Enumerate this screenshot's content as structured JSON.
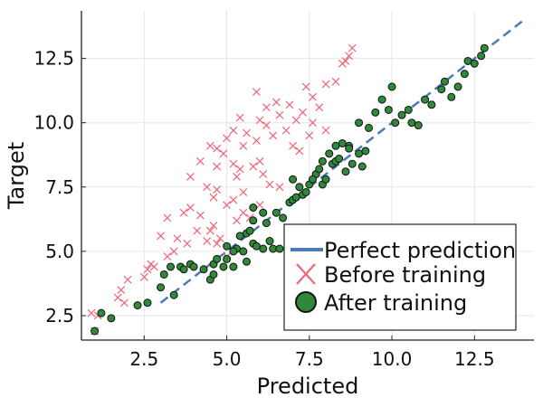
{
  "chart_data": {
    "type": "scatter",
    "xlabel": "Predicted",
    "ylabel": "Target",
    "xlim": [
      0.6,
      14.3
    ],
    "ylim": [
      1.55,
      14.35
    ],
    "xticks": [
      2.5,
      5.0,
      7.5,
      10.0,
      12.5
    ],
    "xtick_labels": [
      "2.5",
      "5.0",
      "7.5",
      "10.0",
      "12.5"
    ],
    "yticks": [
      2.5,
      5.0,
      7.5,
      10.0,
      12.5
    ],
    "ytick_labels": [
      "2.5",
      "5.0",
      "7.5",
      "10.0",
      "12.5"
    ],
    "grid": true,
    "legend_position": "bottom-right",
    "series": [
      {
        "name": "Perfect prediction",
        "kind": "line",
        "style": "dashed",
        "color": "#4c7bb7",
        "points": [
          [
            3.0,
            3.0
          ],
          [
            14.0,
            14.0
          ]
        ]
      },
      {
        "name": "Before training",
        "kind": "scatter",
        "marker": "x",
        "color": "#ee6677",
        "points": [
          [
            1.0,
            1.9
          ],
          [
            0.9,
            2.6
          ],
          [
            1.1,
            2.5
          ],
          [
            1.9,
            3.0
          ],
          [
            1.8,
            3.5
          ],
          [
            2.0,
            3.9
          ],
          [
            1.7,
            3.2
          ],
          [
            2.5,
            4.0
          ],
          [
            2.7,
            4.5
          ],
          [
            2.6,
            4.3
          ],
          [
            2.8,
            4.4
          ],
          [
            3.2,
            4.8
          ],
          [
            3.0,
            5.6
          ],
          [
            3.4,
            5.0
          ],
          [
            3.2,
            6.3
          ],
          [
            3.5,
            5.5
          ],
          [
            3.8,
            5.3
          ],
          [
            3.7,
            6.5
          ],
          [
            3.9,
            6.7
          ],
          [
            4.2,
            6.4
          ],
          [
            4.1,
            5.8
          ],
          [
            4.4,
            5.4
          ],
          [
            4.5,
            5.8
          ],
          [
            4.6,
            6.0
          ],
          [
            4.7,
            5.3
          ],
          [
            4.8,
            5.5
          ],
          [
            5.0,
            4.8
          ],
          [
            5.3,
            6.2
          ],
          [
            4.6,
            7.1
          ],
          [
            4.7,
            7.4
          ],
          [
            5.0,
            6.8
          ],
          [
            5.2,
            7.0
          ],
          [
            5.5,
            6.5
          ],
          [
            5.5,
            7.3
          ],
          [
            5.7,
            6.3
          ],
          [
            6.0,
            6.8
          ],
          [
            3.9,
            7.9
          ],
          [
            4.4,
            7.5
          ],
          [
            4.2,
            8.5
          ],
          [
            4.7,
            8.3
          ],
          [
            4.9,
            8.8
          ],
          [
            5.2,
            8.4
          ],
          [
            5.3,
            7.9
          ],
          [
            5.4,
            8.2
          ],
          [
            5.5,
            9.1
          ],
          [
            5.8,
            8.3
          ],
          [
            6.0,
            8.5
          ],
          [
            6.1,
            8.0
          ],
          [
            6.3,
            7.6
          ],
          [
            6.6,
            7.5
          ],
          [
            4.5,
            9.1
          ],
          [
            4.7,
            9.0
          ],
          [
            5.0,
            9.4
          ],
          [
            5.2,
            9.7
          ],
          [
            5.4,
            10.2
          ],
          [
            5.6,
            9.6
          ],
          [
            5.9,
            9.3
          ],
          [
            6.0,
            10.1
          ],
          [
            6.2,
            9.9
          ],
          [
            6.4,
            9.5
          ],
          [
            6.6,
            10.3
          ],
          [
            6.8,
            9.7
          ],
          [
            7.0,
            9.1
          ],
          [
            7.2,
            8.9
          ],
          [
            7.1,
            10.1
          ],
          [
            7.3,
            10.4
          ],
          [
            7.5,
            9.5
          ],
          [
            7.6,
            10.0
          ],
          [
            7.8,
            10.6
          ],
          [
            8.0,
            9.7
          ],
          [
            6.2,
            10.6
          ],
          [
            6.5,
            10.8
          ],
          [
            6.9,
            10.7
          ],
          [
            5.9,
            11.2
          ],
          [
            7.4,
            11.4
          ],
          [
            7.6,
            11.0
          ],
          [
            8.0,
            11.5
          ],
          [
            8.3,
            11.6
          ],
          [
            8.5,
            12.3
          ],
          [
            8.7,
            12.6
          ],
          [
            8.8,
            12.9
          ],
          [
            8.6,
            12.4
          ]
        ]
      },
      {
        "name": "After training",
        "kind": "scatter",
        "marker": "circle",
        "color": "#2e8a3a",
        "points": [
          [
            1.0,
            1.9
          ],
          [
            1.2,
            2.6
          ],
          [
            1.5,
            2.4
          ],
          [
            2.3,
            2.9
          ],
          [
            2.6,
            3.0
          ],
          [
            3.4,
            3.3
          ],
          [
            3.0,
            3.6
          ],
          [
            3.1,
            4.1
          ],
          [
            3.3,
            4.4
          ],
          [
            3.6,
            4.4
          ],
          [
            3.7,
            4.3
          ],
          [
            3.9,
            4.5
          ],
          [
            4.0,
            4.4
          ],
          [
            4.3,
            4.3
          ],
          [
            4.5,
            3.9
          ],
          [
            4.6,
            4.1
          ],
          [
            4.9,
            4.4
          ],
          [
            5.0,
            4.7
          ],
          [
            5.2,
            4.4
          ],
          [
            5.3,
            5.1
          ],
          [
            5.5,
            5.0
          ],
          [
            5.6,
            4.6
          ],
          [
            5.8,
            5.3
          ],
          [
            5.9,
            5.2
          ],
          [
            6.1,
            5.1
          ],
          [
            6.3,
            5.4
          ],
          [
            6.4,
            5.1
          ],
          [
            6.6,
            5.1
          ],
          [
            4.6,
            4.5
          ],
          [
            4.7,
            4.7
          ],
          [
            5.0,
            5.2
          ],
          [
            5.2,
            5.0
          ],
          [
            5.4,
            5.6
          ],
          [
            5.6,
            5.7
          ],
          [
            5.7,
            5.8
          ],
          [
            5.8,
            6.2
          ],
          [
            5.8,
            6.7
          ],
          [
            6.1,
            6.5
          ],
          [
            6.2,
            6.1
          ],
          [
            6.5,
            6.5
          ],
          [
            6.7,
            6.3
          ],
          [
            6.9,
            6.9
          ],
          [
            7.0,
            7.0
          ],
          [
            7.1,
            7.1
          ],
          [
            7.3,
            7.2
          ],
          [
            7.5,
            7.6
          ],
          [
            7.7,
            8.0
          ],
          [
            7.9,
            7.6
          ],
          [
            8.0,
            7.8
          ],
          [
            8.2,
            8.4
          ],
          [
            8.3,
            8.5
          ],
          [
            8.4,
            8.6
          ],
          [
            8.6,
            8.1
          ],
          [
            8.7,
            9.1
          ],
          [
            8.8,
            8.4
          ],
          [
            9.0,
            8.8
          ],
          [
            9.1,
            8.3
          ],
          [
            9.2,
            8.9
          ],
          [
            7.0,
            7.8
          ],
          [
            7.2,
            7.5
          ],
          [
            7.4,
            7.3
          ],
          [
            7.6,
            7.8
          ],
          [
            7.8,
            8.2
          ],
          [
            7.9,
            8.5
          ],
          [
            8.1,
            8.8
          ],
          [
            8.3,
            9.1
          ],
          [
            8.5,
            9.2
          ],
          [
            8.7,
            9.0
          ],
          [
            9.0,
            10.0
          ],
          [
            9.3,
            9.8
          ],
          [
            9.5,
            10.4
          ],
          [
            9.7,
            10.9
          ],
          [
            9.9,
            10.5
          ],
          [
            10.0,
            11.4
          ],
          [
            10.1,
            10.0
          ],
          [
            10.3,
            10.3
          ],
          [
            10.5,
            10.5
          ],
          [
            10.6,
            10.0
          ],
          [
            10.8,
            9.9
          ],
          [
            11.0,
            10.9
          ],
          [
            11.2,
            10.7
          ],
          [
            11.5,
            11.3
          ],
          [
            11.8,
            11.0
          ],
          [
            12.0,
            11.4
          ],
          [
            12.2,
            11.9
          ],
          [
            12.3,
            12.4
          ],
          [
            12.5,
            12.3
          ],
          [
            12.7,
            12.6
          ],
          [
            12.8,
            12.9
          ],
          [
            11.6,
            11.6
          ]
        ]
      }
    ]
  }
}
